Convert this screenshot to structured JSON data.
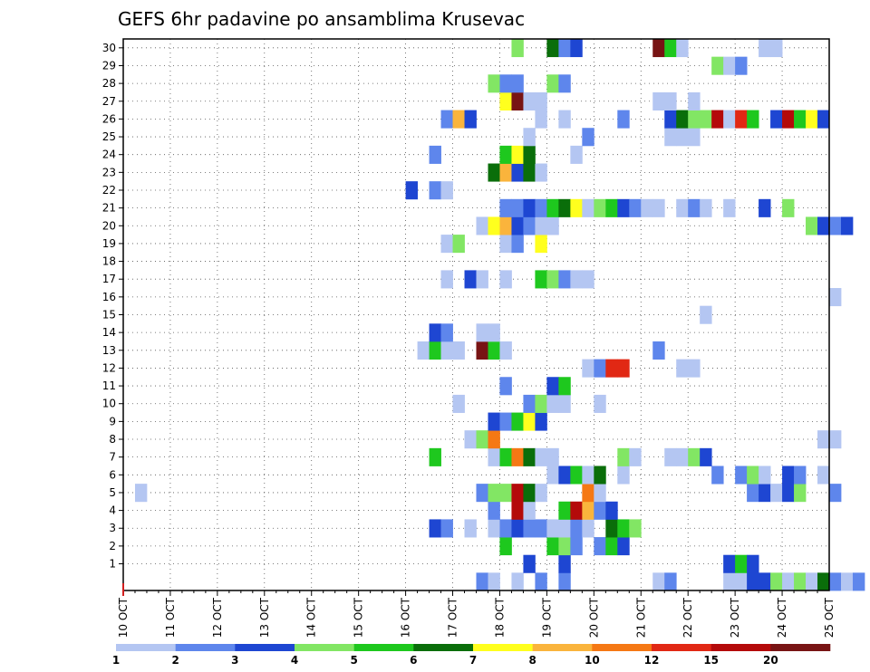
{
  "chart_data": {
    "type": "heatmap",
    "title": "GEFS 6hr padavine po ansamblima Krusevac",
    "xlabel": "",
    "ylabel": "",
    "x_ticks": [
      "10 OCT",
      "11 OCT",
      "12 OCT",
      "13 OCT",
      "14 OCT",
      "15 OCT",
      "16 OCT",
      "17 OCT",
      "18 OCT",
      "19 OCT",
      "20 OCT",
      "21 OCT",
      "22 OCT",
      "23 OCT",
      "24 OCT",
      "25 OCT"
    ],
    "y_ticks": [
      1,
      2,
      3,
      4,
      5,
      6,
      7,
      8,
      9,
      10,
      11,
      12,
      13,
      14,
      15,
      16,
      17,
      18,
      19,
      20,
      21,
      22,
      23,
      24,
      25,
      26,
      27,
      28,
      29,
      30
    ],
    "time_steps_per_day": 4,
    "grid": true,
    "legend": {
      "placement": "bottom",
      "labels": [
        "1",
        "2",
        "3",
        "4",
        "5",
        "6",
        "7",
        "8",
        "10",
        "12",
        "15",
        "20"
      ],
      "colors": [
        "#b4c6f2",
        "#5e86ec",
        "#1e46d2",
        "#82e664",
        "#1ec81e",
        "#0a6e0a",
        "#ffff1e",
        "#fab43c",
        "#f57814",
        "#e12814",
        "#b40a0a",
        "#781414"
      ]
    },
    "cells": [
      [
        0,
        30,
        2
      ],
      [
        0,
        31,
        1
      ],
      [
        0,
        33,
        1
      ],
      [
        0,
        35,
        2
      ],
      [
        0,
        37,
        2
      ],
      [
        0,
        45,
        1
      ],
      [
        0,
        46,
        2
      ],
      [
        0,
        51,
        1
      ],
      [
        0,
        52,
        1
      ],
      [
        0,
        53,
        3
      ],
      [
        0,
        54,
        3
      ],
      [
        0,
        55,
        4
      ],
      [
        0,
        56,
        1
      ],
      [
        0,
        57,
        4
      ],
      [
        0,
        58,
        1
      ],
      [
        0,
        59,
        6
      ],
      [
        0,
        60,
        2
      ],
      [
        0,
        61,
        1
      ],
      [
        0,
        62,
        2
      ],
      [
        1,
        34,
        3
      ],
      [
        1,
        37,
        3
      ],
      [
        1,
        51,
        3
      ],
      [
        1,
        52,
        5
      ],
      [
        1,
        53,
        3
      ],
      [
        2,
        32,
        5
      ],
      [
        2,
        36,
        5
      ],
      [
        2,
        37,
        4
      ],
      [
        2,
        38,
        2
      ],
      [
        2,
        40,
        2
      ],
      [
        2,
        41,
        5
      ],
      [
        2,
        42,
        3
      ],
      [
        3,
        26,
        3
      ],
      [
        3,
        27,
        2
      ],
      [
        3,
        29,
        1
      ],
      [
        3,
        31,
        1
      ],
      [
        3,
        32,
        2
      ],
      [
        3,
        33,
        3
      ],
      [
        3,
        34,
        2
      ],
      [
        3,
        35,
        2
      ],
      [
        3,
        36,
        1
      ],
      [
        3,
        37,
        1
      ],
      [
        3,
        38,
        2
      ],
      [
        3,
        39,
        1
      ],
      [
        3,
        41,
        6
      ],
      [
        3,
        42,
        5
      ],
      [
        3,
        43,
        4
      ],
      [
        4,
        31,
        2
      ],
      [
        4,
        33,
        11
      ],
      [
        4,
        34,
        1
      ],
      [
        4,
        37,
        5
      ],
      [
        4,
        38,
        11
      ],
      [
        4,
        39,
        8
      ],
      [
        4,
        40,
        2
      ],
      [
        4,
        41,
        3
      ],
      [
        5,
        1,
        1
      ],
      [
        5,
        30,
        2
      ],
      [
        5,
        31,
        4
      ],
      [
        5,
        32,
        4
      ],
      [
        5,
        33,
        11
      ],
      [
        5,
        34,
        6
      ],
      [
        5,
        35,
        1
      ],
      [
        5,
        39,
        9
      ],
      [
        5,
        40,
        1
      ],
      [
        5,
        53,
        2
      ],
      [
        5,
        54,
        3
      ],
      [
        5,
        55,
        1
      ],
      [
        5,
        56,
        3
      ],
      [
        5,
        57,
        4
      ],
      [
        5,
        60,
        2
      ],
      [
        6,
        36,
        1
      ],
      [
        6,
        37,
        3
      ],
      [
        6,
        38,
        5
      ],
      [
        6,
        39,
        1
      ],
      [
        6,
        40,
        6
      ],
      [
        6,
        42,
        1
      ],
      [
        6,
        50,
        2
      ],
      [
        6,
        52,
        2
      ],
      [
        6,
        53,
        4
      ],
      [
        6,
        54,
        1
      ],
      [
        6,
        56,
        3
      ],
      [
        6,
        57,
        2
      ],
      [
        6,
        59,
        1
      ],
      [
        7,
        26,
        5
      ],
      [
        7,
        31,
        1
      ],
      [
        7,
        32,
        5
      ],
      [
        7,
        33,
        9
      ],
      [
        7,
        34,
        6
      ],
      [
        7,
        35,
        1
      ],
      [
        7,
        36,
        1
      ],
      [
        7,
        42,
        4
      ],
      [
        7,
        43,
        1
      ],
      [
        7,
        46,
        1
      ],
      [
        7,
        47,
        1
      ],
      [
        7,
        48,
        4
      ],
      [
        7,
        49,
        3
      ],
      [
        8,
        29,
        1
      ],
      [
        8,
        30,
        4
      ],
      [
        8,
        31,
        9
      ],
      [
        8,
        59,
        1
      ],
      [
        8,
        60,
        1
      ],
      [
        9,
        31,
        3
      ],
      [
        9,
        32,
        2
      ],
      [
        9,
        33,
        5
      ],
      [
        9,
        34,
        7
      ],
      [
        9,
        35,
        3
      ],
      [
        10,
        28,
        1
      ],
      [
        10,
        34,
        2
      ],
      [
        10,
        35,
        4
      ],
      [
        10,
        36,
        1
      ],
      [
        10,
        37,
        1
      ],
      [
        10,
        40,
        1
      ],
      [
        11,
        32,
        2
      ],
      [
        11,
        36,
        3
      ],
      [
        11,
        37,
        5
      ],
      [
        12,
        39,
        1
      ],
      [
        12,
        40,
        2
      ],
      [
        12,
        41,
        10
      ],
      [
        12,
        42,
        10
      ],
      [
        12,
        47,
        1
      ],
      [
        12,
        48,
        1
      ],
      [
        13,
        25,
        1
      ],
      [
        13,
        26,
        5
      ],
      [
        13,
        27,
        1
      ],
      [
        13,
        28,
        1
      ],
      [
        13,
        30,
        12
      ],
      [
        13,
        31,
        5
      ],
      [
        13,
        32,
        1
      ],
      [
        13,
        45,
        2
      ],
      [
        14,
        26,
        3
      ],
      [
        14,
        27,
        2
      ],
      [
        14,
        30,
        1
      ],
      [
        14,
        31,
        1
      ],
      [
        15,
        49,
        1
      ],
      [
        16,
        60,
        1
      ],
      [
        17,
        27,
        1
      ],
      [
        17,
        29,
        3
      ],
      [
        17,
        30,
        1
      ],
      [
        17,
        32,
        1
      ],
      [
        17,
        35,
        5
      ],
      [
        17,
        36,
        4
      ],
      [
        17,
        37,
        2
      ],
      [
        17,
        38,
        1
      ],
      [
        17,
        39,
        1
      ],
      [
        19,
        27,
        1
      ],
      [
        19,
        28,
        4
      ],
      [
        19,
        32,
        1
      ],
      [
        19,
        33,
        2
      ],
      [
        19,
        35,
        7
      ],
      [
        20,
        30,
        1
      ],
      [
        20,
        31,
        7
      ],
      [
        20,
        32,
        8
      ],
      [
        20,
        33,
        3
      ],
      [
        20,
        34,
        2
      ],
      [
        20,
        35,
        1
      ],
      [
        20,
        36,
        1
      ],
      [
        20,
        58,
        4
      ],
      [
        20,
        59,
        3
      ],
      [
        20,
        60,
        2
      ],
      [
        20,
        61,
        3
      ],
      [
        21,
        32,
        2
      ],
      [
        21,
        33,
        2
      ],
      [
        21,
        34,
        3
      ],
      [
        21,
        35,
        2
      ],
      [
        21,
        36,
        5
      ],
      [
        21,
        37,
        6
      ],
      [
        21,
        38,
        7
      ],
      [
        21,
        39,
        1
      ],
      [
        21,
        40,
        4
      ],
      [
        21,
        41,
        5
      ],
      [
        21,
        42,
        3
      ],
      [
        21,
        43,
        2
      ],
      [
        21,
        44,
        1
      ],
      [
        21,
        45,
        1
      ],
      [
        21,
        47,
        1
      ],
      [
        21,
        48,
        2
      ],
      [
        21,
        49,
        1
      ],
      [
        21,
        51,
        1
      ],
      [
        21,
        54,
        3
      ],
      [
        21,
        56,
        4
      ],
      [
        22,
        24,
        3
      ],
      [
        22,
        26,
        2
      ],
      [
        22,
        27,
        1
      ],
      [
        23,
        31,
        6
      ],
      [
        23,
        32,
        8
      ],
      [
        23,
        33,
        3
      ],
      [
        23,
        34,
        6
      ],
      [
        23,
        35,
        1
      ],
      [
        24,
        26,
        2
      ],
      [
        24,
        32,
        5
      ],
      [
        24,
        33,
        7
      ],
      [
        24,
        34,
        6
      ],
      [
        24,
        38,
        1
      ],
      [
        25,
        34,
        1
      ],
      [
        25,
        39,
        2
      ],
      [
        25,
        46,
        1
      ],
      [
        25,
        47,
        1
      ],
      [
        25,
        48,
        1
      ],
      [
        26,
        27,
        2
      ],
      [
        26,
        28,
        8
      ],
      [
        26,
        29,
        3
      ],
      [
        26,
        35,
        1
      ],
      [
        26,
        37,
        1
      ],
      [
        26,
        42,
        2
      ],
      [
        26,
        46,
        3
      ],
      [
        26,
        47,
        6
      ],
      [
        26,
        48,
        4
      ],
      [
        26,
        49,
        4
      ],
      [
        26,
        50,
        11
      ],
      [
        26,
        51,
        1
      ],
      [
        26,
        52,
        10
      ],
      [
        26,
        53,
        5
      ],
      [
        26,
        55,
        3
      ],
      [
        26,
        56,
        11
      ],
      [
        26,
        57,
        5
      ],
      [
        26,
        58,
        7
      ],
      [
        26,
        59,
        3
      ],
      [
        27,
        32,
        7
      ],
      [
        27,
        33,
        12
      ],
      [
        27,
        34,
        1
      ],
      [
        27,
        35,
        1
      ],
      [
        27,
        45,
        1
      ],
      [
        27,
        46,
        1
      ],
      [
        27,
        48,
        1
      ],
      [
        28,
        31,
        4
      ],
      [
        28,
        32,
        2
      ],
      [
        28,
        33,
        2
      ],
      [
        28,
        36,
        4
      ],
      [
        28,
        37,
        2
      ],
      [
        29,
        50,
        4
      ],
      [
        29,
        51,
        1
      ],
      [
        29,
        52,
        2
      ],
      [
        30,
        33,
        4
      ],
      [
        30,
        36,
        6
      ],
      [
        30,
        37,
        2
      ],
      [
        30,
        38,
        3
      ],
      [
        30,
        45,
        12
      ],
      [
        30,
        46,
        5
      ],
      [
        30,
        47,
        1
      ],
      [
        30,
        54,
        1
      ],
      [
        30,
        55,
        1
      ]
    ]
  }
}
